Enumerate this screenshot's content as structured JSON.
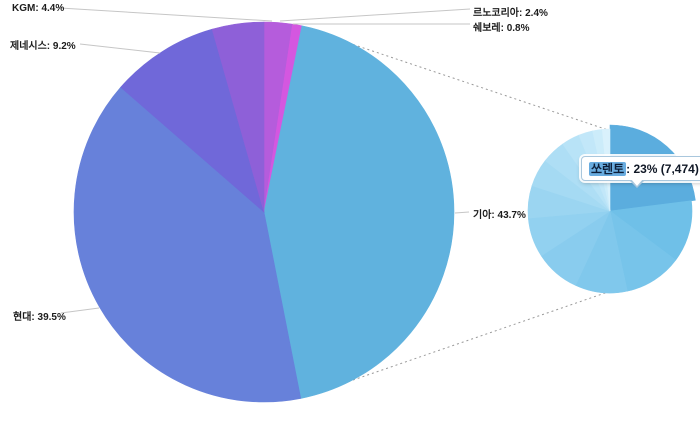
{
  "background_color": "#ffffff",
  "chart_data": {
    "type": "pie",
    "title": "",
    "legend": "none",
    "grid": "off",
    "big_pie": {
      "unit": "%",
      "start_angle": "12-o-clock",
      "direction": "clockwise",
      "slices": [
        {
          "name": "르노코리아",
          "value": 2.4,
          "color": "#b55cdc",
          "label_text": "르노코리아: 2.4%"
        },
        {
          "name": "쉐보레",
          "value": 0.8,
          "color": "#d457e0",
          "label_text": "쉐보레: 0.8%"
        },
        {
          "name": "기아",
          "value": 43.7,
          "color": "#60b2de",
          "label_text": "기아: 43.7%"
        },
        {
          "name": "현대",
          "value": 39.5,
          "color": "#6781da",
          "label_text": "현대: 39.5%"
        },
        {
          "name": "제네시스",
          "value": 9.2,
          "color": "#7068d9",
          "label_text": "제네시스: 9.2%"
        },
        {
          "name": "KGM",
          "value": 4.4,
          "color": "#8e60d8",
          "label_text": "KGM: 4.4%"
        }
      ]
    },
    "drilldown_pie": {
      "parent_slice": "기아",
      "direction": "clockwise",
      "segments": [
        {
          "name": "쏘렌토",
          "pct": 23,
          "count": "7,474",
          "color": "#5badde",
          "highlighted": true
        },
        {
          "pct": 12.2,
          "color": "#6fc0e8"
        },
        {
          "pct": 11.4,
          "color": "#77c4ea"
        },
        {
          "pct": 10.3,
          "color": "#80c8ec"
        },
        {
          "pct": 8.9,
          "color": "#89ccee"
        },
        {
          "pct": 7.8,
          "color": "#92d1f0"
        },
        {
          "pct": 6.4,
          "color": "#9bd5f1"
        },
        {
          "pct": 5.5,
          "color": "#a5daf3"
        },
        {
          "pct": 4.7,
          "color": "#aedef5"
        },
        {
          "pct": 3.6,
          "color": "#b8e3f7"
        },
        {
          "pct": 2.8,
          "color": "#c2e7f9"
        },
        {
          "pct": 1.9,
          "color": "#ccecfa"
        },
        {
          "pct": 1.5,
          "color": "#d9f1fc"
        }
      ]
    },
    "tooltip": {
      "highlighted_name": "쏘렌토",
      "rest_text": ": 23% (7,474)",
      "full_text": "쏘렌토: 23% (7,474)",
      "pct": 23,
      "count": "7,474",
      "chip_color": "#69acdf",
      "border_color": "#a9c7dd"
    },
    "line_colors": {
      "leader": "#c6c6c6",
      "connector_dotted": "#9a9a9a"
    }
  }
}
